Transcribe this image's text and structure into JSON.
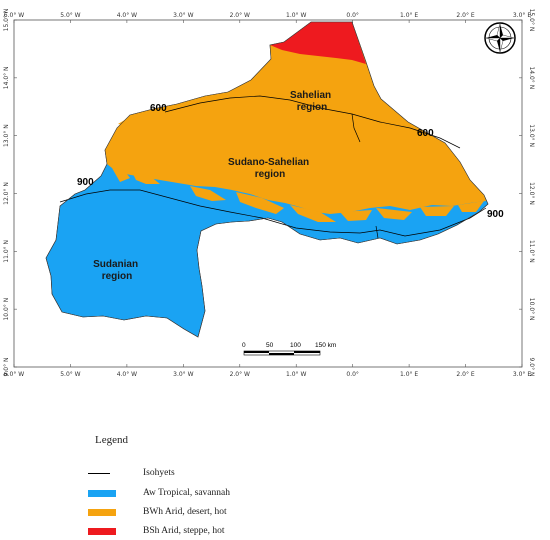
{
  "colors": {
    "aw": "#1aa3f3",
    "bwh": "#f5a30f",
    "bsh": "#ee1a1f",
    "isohyet": "#000000"
  },
  "axes": {
    "lon_ticks": [
      "6.0° W",
      "5.0° W",
      "4.0° W",
      "3.0° W",
      "2.0° W",
      "1.0° W",
      "0.0°",
      "1.0° E",
      "2.0° E",
      "3.0° E"
    ],
    "lat_ticks": [
      "15.0° N",
      "14.0° N",
      "13.0° N",
      "12.0° N",
      "11.0° N",
      "10.0° N",
      "9.0° N"
    ]
  },
  "regions": {
    "sahelian": [
      "Sahelian",
      "region"
    ],
    "sudano_sahelian": [
      "Sudano-Sahelian",
      "region"
    ],
    "sudanian": [
      "Sudanian",
      "region"
    ]
  },
  "isohyet_labels": {
    "w600": "600",
    "e600": "600",
    "w900": "900",
    "e900": "900"
  },
  "scale_bar": {
    "labels": [
      "0",
      "50",
      "100",
      "150 km"
    ]
  },
  "compass": {
    "icon": "north-arrow-icon"
  },
  "legend": {
    "title": "Legend",
    "items": [
      {
        "type": "line",
        "label": "Isohyets"
      },
      {
        "type": "swatch",
        "color_key": "aw",
        "label": "Aw Tropical, savannah"
      },
      {
        "type": "swatch",
        "color_key": "bwh",
        "label": "BWh Arid, desert, hot"
      },
      {
        "type": "swatch",
        "color_key": "bsh",
        "label": "BSh Arid, steppe, hot"
      }
    ]
  }
}
